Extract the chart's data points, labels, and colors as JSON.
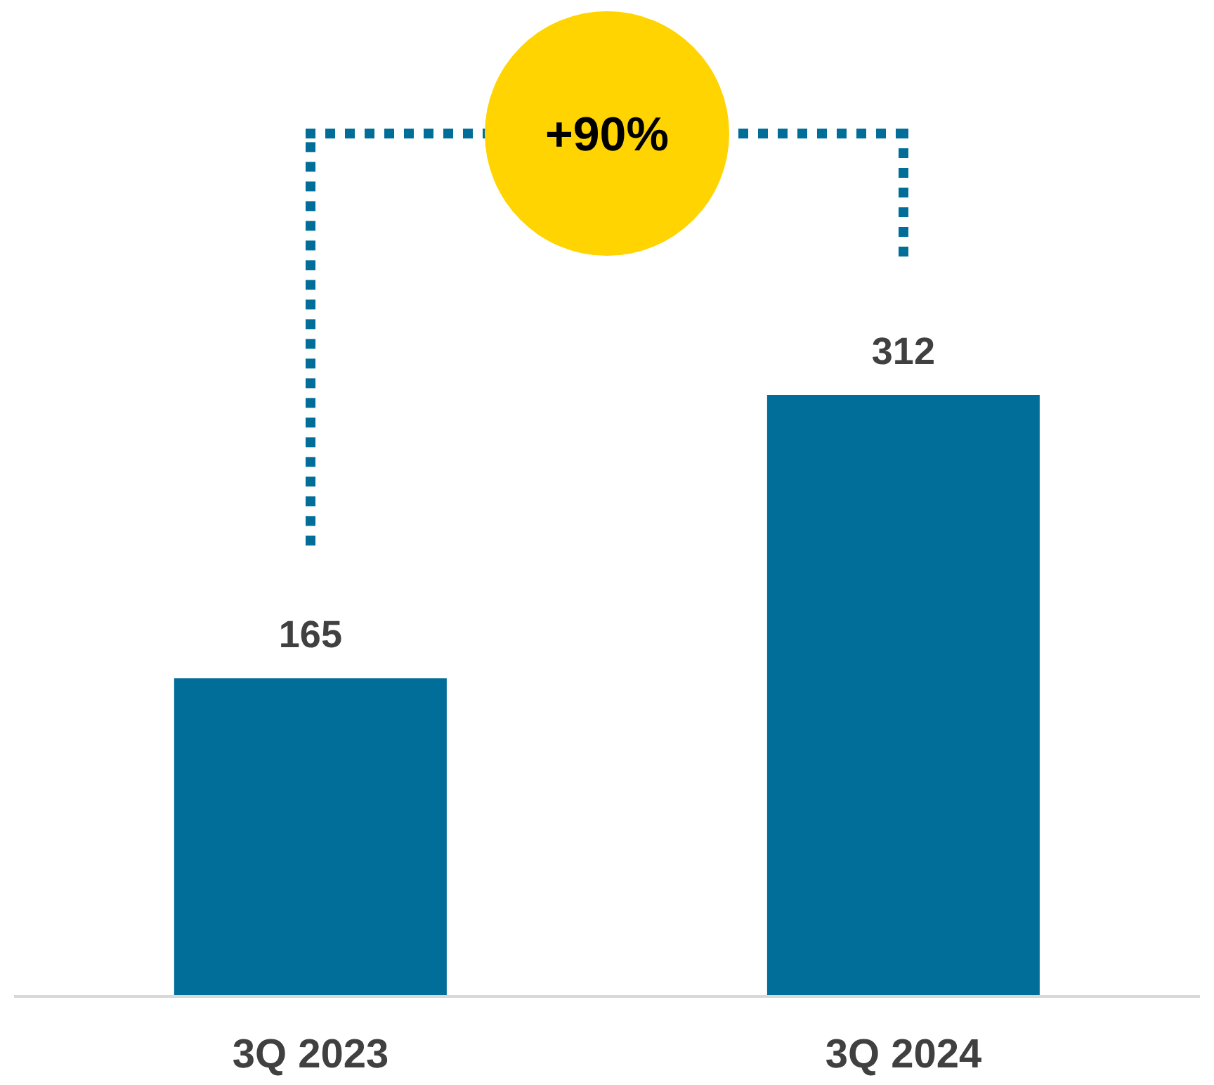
{
  "chart_data": {
    "type": "bar",
    "categories": [
      "3Q 2023",
      "3Q 2024"
    ],
    "values": [
      165,
      312
    ],
    "color": "#006e98",
    "data_labels": true,
    "annotations": [
      "+90%"
    ]
  }
}
